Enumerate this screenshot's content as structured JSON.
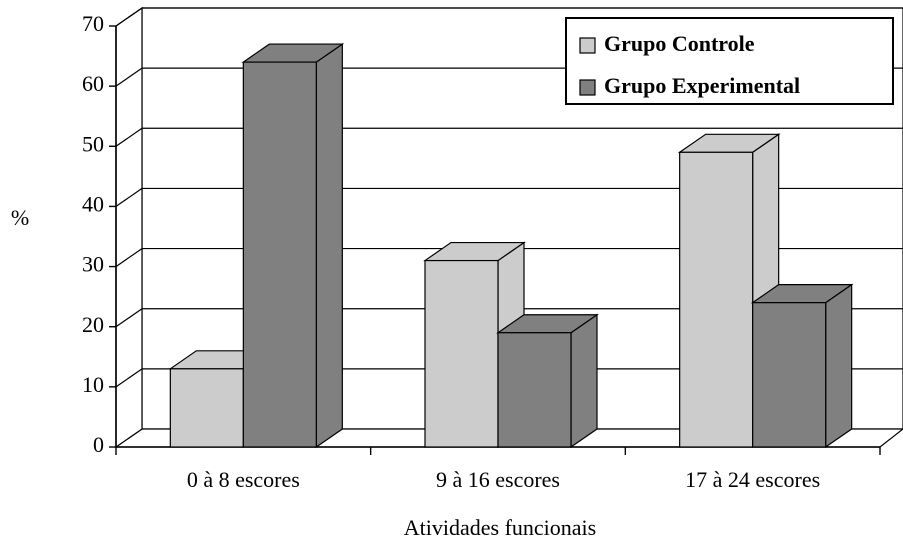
{
  "chart_data": {
    "type": "bar",
    "style": "3d-clustered-column",
    "title": "",
    "xlabel": "Atividades funcionais",
    "ylabel": "%",
    "ylim": [
      0,
      70
    ],
    "yticks": [
      "0",
      "10",
      "20",
      "30",
      "40",
      "50",
      "60",
      "70"
    ],
    "grid": true,
    "legend_position": "top-right",
    "categories": [
      "0 à 8 escores",
      "9 à 16 escores",
      "17 à 24 escores"
    ],
    "series": [
      {
        "name": "Grupo Controle",
        "values": [
          13,
          31,
          49
        ],
        "color": "#cccccc"
      },
      {
        "name": "Grupo Experimental",
        "values": [
          64,
          19,
          24
        ],
        "color": "#808080"
      }
    ]
  }
}
